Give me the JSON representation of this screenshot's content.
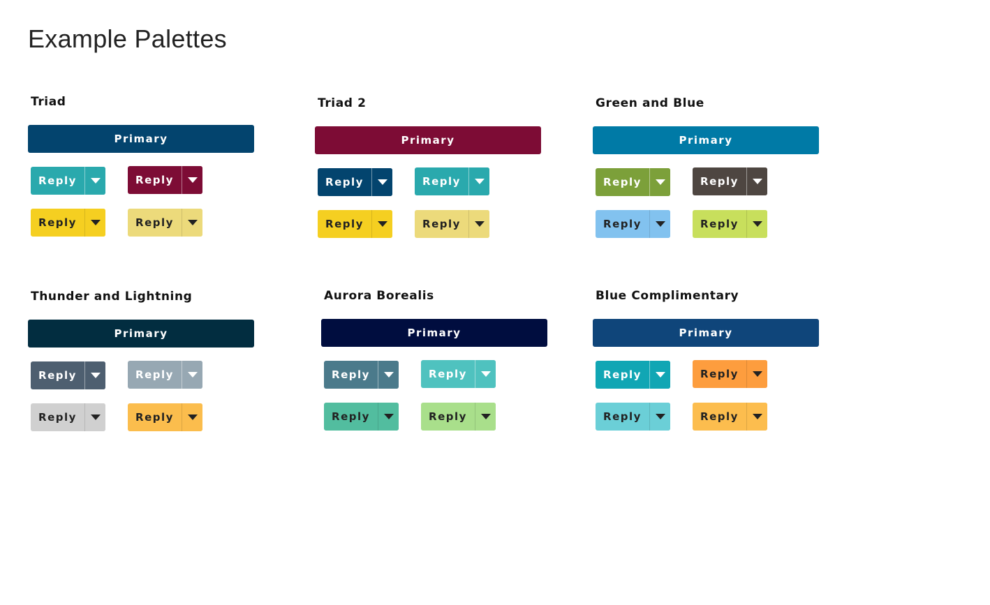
{
  "page": {
    "title": "Example Palettes"
  },
  "palettes": [
    {
      "name": "Triad",
      "primary": {
        "label": "Primary",
        "color": "#03446e",
        "text_color": "#ffffff"
      },
      "buttons": [
        {
          "label": "Reply",
          "color": "#2aa9ad",
          "toggle_color": "#2aa9ad",
          "text_color": "#ffffff",
          "icon": "caret-down-icon"
        },
        {
          "label": "Reply",
          "color": "#7d0c35",
          "toggle_color": "#7d0c35",
          "text_color": "#ffffff",
          "icon": "caret-down-icon"
        },
        {
          "label": "Reply",
          "color": "#f5cf21",
          "toggle_color": "#f5cf21",
          "text_color": "#222222",
          "icon": "caret-down-icon"
        },
        {
          "label": "Reply",
          "color": "#ecda7b",
          "toggle_color": "#ecda7b",
          "text_color": "#222222",
          "icon": "caret-down-icon"
        }
      ]
    },
    {
      "name": "Triad 2",
      "primary": {
        "label": "Primary",
        "color": "#7d0c35",
        "text_color": "#ffffff"
      },
      "buttons": [
        {
          "label": "Reply",
          "color": "#03446e",
          "toggle_color": "#03446e",
          "text_color": "#ffffff",
          "icon": "caret-down-icon"
        },
        {
          "label": "Reply",
          "color": "#2aa9ad",
          "toggle_color": "#2aa9ad",
          "text_color": "#ffffff",
          "icon": "caret-down-icon"
        },
        {
          "label": "Reply",
          "color": "#f5cf21",
          "toggle_color": "#f5cf21",
          "text_color": "#222222",
          "icon": "caret-down-icon"
        },
        {
          "label": "Reply",
          "color": "#ecda7b",
          "toggle_color": "#ecda7b",
          "text_color": "#222222",
          "icon": "caret-down-icon"
        }
      ]
    },
    {
      "name": "Green and Blue",
      "primary": {
        "label": "Primary",
        "color": "#007aa6",
        "text_color": "#ffffff"
      },
      "buttons": [
        {
          "label": "Reply",
          "color": "#7ca03a",
          "toggle_color": "#7ca03a",
          "text_color": "#ffffff",
          "icon": "caret-down-icon"
        },
        {
          "label": "Reply",
          "color": "#4e4641",
          "toggle_color": "#4e4641",
          "text_color": "#ffffff",
          "icon": "caret-down-icon"
        },
        {
          "label": "Reply",
          "color": "#82c2ef",
          "toggle_color": "#82c2ef",
          "text_color": "#222222",
          "icon": "caret-down-icon"
        },
        {
          "label": "Reply",
          "color": "#c8df5c",
          "toggle_color": "#c8df5c",
          "text_color": "#222222",
          "icon": "caret-down-icon"
        }
      ]
    },
    {
      "name": "Thunder and Lightning",
      "primary": {
        "label": "Primary",
        "color": "#022d40",
        "text_color": "#ffffff"
      },
      "buttons": [
        {
          "label": "Reply",
          "color": "#4e5f70",
          "toggle_color": "#4e5f70",
          "text_color": "#ffffff",
          "icon": "caret-down-icon"
        },
        {
          "label": "Reply",
          "color": "#97a8b3",
          "toggle_color": "#97a8b3",
          "text_color": "#ffffff",
          "icon": "caret-down-icon"
        },
        {
          "label": "Reply",
          "color": "#d0d0d0",
          "toggle_color": "#d0d0d0",
          "text_color": "#222222",
          "icon": "caret-down-icon"
        },
        {
          "label": "Reply",
          "color": "#fbbd4d",
          "toggle_color": "#fbbd4d",
          "text_color": "#222222",
          "icon": "caret-down-icon"
        }
      ]
    },
    {
      "name": "Aurora Borealis",
      "primary": {
        "label": "Primary",
        "color": "#000d3f",
        "text_color": "#ffffff"
      },
      "buttons": [
        {
          "label": "Reply",
          "color": "#4b7a8b",
          "toggle_color": "#4b7a8b",
          "text_color": "#ffffff",
          "icon": "caret-down-icon"
        },
        {
          "label": "Reply",
          "color": "#4fc2bf",
          "toggle_color": "#4fc2bf",
          "text_color": "#ffffff",
          "icon": "caret-down-icon"
        },
        {
          "label": "Reply",
          "color": "#52bd9f",
          "toggle_color": "#52bd9f",
          "text_color": "#222222",
          "icon": "caret-down-icon"
        },
        {
          "label": "Reply",
          "color": "#a9df8b",
          "toggle_color": "#a9df8b",
          "text_color": "#222222",
          "icon": "caret-down-icon"
        }
      ]
    },
    {
      "name": "Blue Complimentary",
      "primary": {
        "label": "Primary",
        "color": "#0f457a",
        "text_color": "#ffffff"
      },
      "buttons": [
        {
          "label": "Reply",
          "color": "#11a6b4",
          "toggle_color": "#11a6b4",
          "text_color": "#ffffff",
          "icon": "caret-down-icon"
        },
        {
          "label": "Reply",
          "color": "#fd9d3e",
          "toggle_color": "#fd9d3e",
          "text_color": "#222222",
          "icon": "caret-down-icon"
        },
        {
          "label": "Reply",
          "color": "#6bcfd7",
          "toggle_color": "#6bcfd7",
          "text_color": "#222222",
          "icon": "caret-down-icon"
        },
        {
          "label": "Reply",
          "color": "#fcbd4e",
          "toggle_color": "#fcbd4e",
          "text_color": "#222222",
          "icon": "caret-down-icon"
        }
      ]
    }
  ]
}
